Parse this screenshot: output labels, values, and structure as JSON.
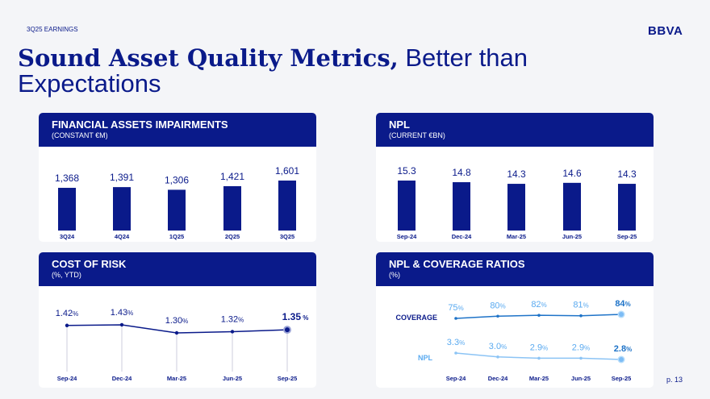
{
  "header": {
    "kicker": "3Q25 EARNINGS",
    "logo": "BBVA",
    "title_bold": "Sound Asset Quality Metrics,",
    "title_rest": " Better than Expectations"
  },
  "page_number": "p. 13",
  "colors": {
    "navy": "#0a1a8a",
    "light_blue": "#5aaaf0",
    "mid_blue": "#1e73c8"
  },
  "panels": [
    {
      "title": "FINANCIAL ASSETS IMPAIRMENTS",
      "subtitle": "(CONSTANT €M)"
    },
    {
      "title": "NPL",
      "subtitle": "(CURRENT €BN)"
    },
    {
      "title": "COST OF RISK",
      "subtitle": "(%, YTD)"
    },
    {
      "title": "NPL & COVERAGE RATIOS",
      "subtitle": "(%)"
    }
  ],
  "chart_data": [
    {
      "type": "bar",
      "categories": [
        "3Q24",
        "4Q24",
        "1Q25",
        "2Q25",
        "3Q25"
      ],
      "values": [
        1368,
        1391,
        1306,
        1421,
        1601
      ],
      "labels": [
        "1,368",
        "1,391",
        "1,306",
        "1,421",
        "1,601"
      ]
    },
    {
      "type": "bar",
      "categories": [
        "Sep-24",
        "Dec-24",
        "Mar-25",
        "Jun-25",
        "Sep-25"
      ],
      "values": [
        15.3,
        14.8,
        14.3,
        14.6,
        14.3
      ],
      "labels": [
        "15.3",
        "14.8",
        "14.3",
        "14.6",
        "14.3"
      ]
    },
    {
      "type": "line",
      "categories": [
        "Sep-24",
        "Dec-24",
        "Mar-25",
        "Jun-25",
        "Sep-25"
      ],
      "values": [
        1.42,
        1.43,
        1.3,
        1.32,
        1.35
      ],
      "labels": [
        "1.42",
        "1.43",
        "1.30",
        "1.32",
        "1.35"
      ],
      "unit": "%"
    },
    {
      "type": "line",
      "categories": [
        "Sep-24",
        "Dec-24",
        "Mar-25",
        "Jun-25",
        "Sep-25"
      ],
      "unit": "%",
      "series": [
        {
          "name": "COVERAGE",
          "values": [
            75,
            80,
            82,
            81,
            84
          ],
          "labels": [
            "75",
            "80",
            "82",
            "81",
            "84"
          ],
          "color": "#1e73c8",
          "label_color": "#5aaaf0"
        },
        {
          "name": "NPL",
          "values": [
            3.3,
            3.0,
            2.9,
            2.9,
            2.8
          ],
          "labels": [
            "3.3",
            "3.0",
            "2.9",
            "2.9",
            "2.8"
          ],
          "color": "#8cc4f5",
          "label_color": "#5aaaf0"
        }
      ]
    }
  ]
}
